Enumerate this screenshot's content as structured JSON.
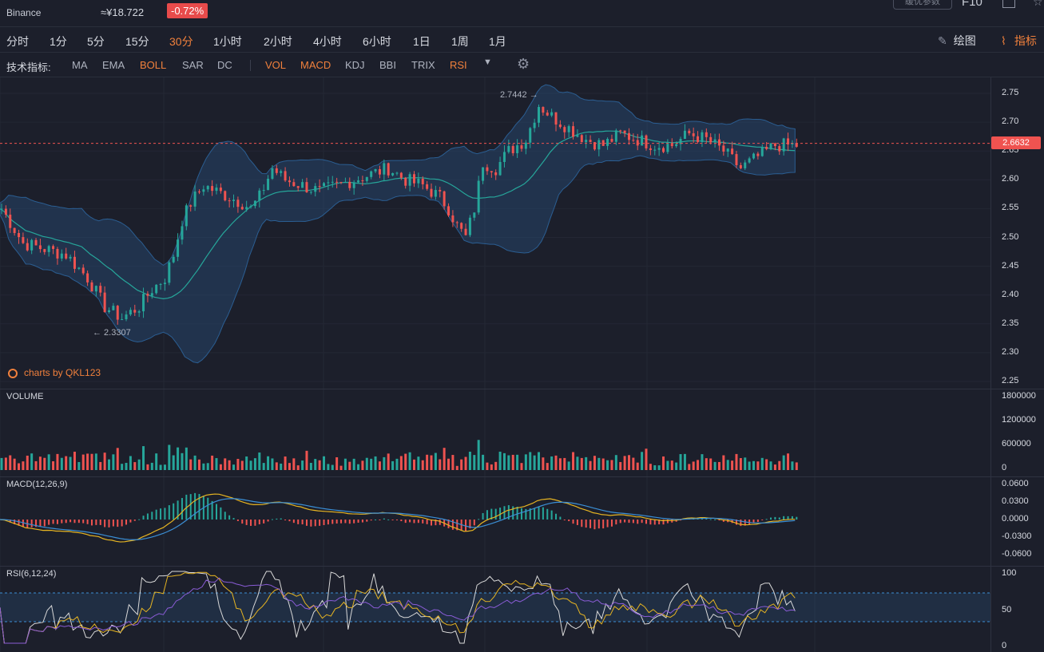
{
  "header": {
    "exchange": "Binance",
    "cny_price": "≈¥18.722",
    "change": "-0.72%",
    "settings_button": "缓优参数",
    "f10": "F10"
  },
  "periods": [
    "分时",
    "1分",
    "5分",
    "15分",
    "30分",
    "1小时",
    "2小时",
    "4小时",
    "6小时",
    "1日",
    "1周",
    "1月"
  ],
  "active_period": "30分",
  "tools": {
    "draw_label": "绘图",
    "indicator_label": "指标"
  },
  "indicator_bar": {
    "label": "技术指标:",
    "main": [
      "MA",
      "EMA",
      "BOLL",
      "SAR",
      "DC"
    ],
    "sub": [
      "VOL",
      "MACD",
      "KDJ",
      "BBI",
      "TRIX",
      "RSI"
    ],
    "active": [
      "BOLL",
      "VOL",
      "MACD",
      "RSI"
    ]
  },
  "main_chart": {
    "price_ticks": [
      "2.75",
      "2.70",
      "2.65",
      "2.60",
      "2.55",
      "2.50",
      "2.45",
      "2.40",
      "2.35",
      "2.30",
      "2.25"
    ],
    "last_price": "2.6632",
    "high_annotation": "2.7442 →",
    "low_annotation": "← 2.3307",
    "brand": "charts by QKL123"
  },
  "volume_panel": {
    "label": "VOLUME",
    "ticks": [
      "1800000",
      "1200000",
      "600000",
      "0"
    ]
  },
  "macd_panel": {
    "label": "MACD(12,26,9)",
    "ticks": [
      "0.0600",
      "0.0300",
      "0.0000",
      "-0.0300",
      "-0.0600"
    ]
  },
  "rsi_panel": {
    "label": "RSI(6,12,24)",
    "ticks": [
      "100",
      "50",
      "0"
    ]
  },
  "colors": {
    "up": "#26a69a",
    "down": "#ef5350",
    "accent": "#f0803c",
    "band": "#2a5a8c",
    "background": "#1c1f2b"
  },
  "chart_data": {
    "type": "candlestick",
    "last_price": 2.6632,
    "high": 2.7442,
    "low": 2.3307,
    "price_range": [
      2.25,
      2.77
    ],
    "close_path": [
      [
        0,
        2.55
      ],
      [
        5,
        2.49
      ],
      [
        10,
        2.48
      ],
      [
        15,
        2.47
      ],
      [
        20,
        2.43
      ],
      [
        24,
        2.38
      ],
      [
        28,
        2.36
      ],
      [
        32,
        2.38
      ],
      [
        35,
        2.41
      ],
      [
        38,
        2.43
      ],
      [
        40,
        2.47
      ],
      [
        42,
        2.53
      ],
      [
        44,
        2.56
      ],
      [
        47,
        2.59
      ],
      [
        50,
        2.58
      ],
      [
        53,
        2.57
      ],
      [
        56,
        2.56
      ],
      [
        58,
        2.55
      ],
      [
        60,
        2.57
      ],
      [
        63,
        2.62
      ],
      [
        66,
        2.6
      ],
      [
        70,
        2.59
      ],
      [
        74,
        2.58
      ],
      [
        78,
        2.59
      ],
      [
        82,
        2.6
      ],
      [
        86,
        2.61
      ],
      [
        90,
        2.62
      ],
      [
        94,
        2.6
      ],
      [
        98,
        2.59
      ],
      [
        102,
        2.57
      ],
      [
        104,
        2.55
      ],
      [
        106,
        2.52
      ],
      [
        108,
        2.5
      ],
      [
        110,
        2.55
      ],
      [
        112,
        2.63
      ],
      [
        115,
        2.62
      ],
      [
        118,
        2.65
      ],
      [
        122,
        2.67
      ],
      [
        125,
        2.73
      ],
      [
        128,
        2.71
      ],
      [
        132,
        2.69
      ],
      [
        136,
        2.67
      ],
      [
        140,
        2.66
      ],
      [
        144,
        2.68
      ],
      [
        148,
        2.67
      ],
      [
        152,
        2.66
      ],
      [
        156,
        2.66
      ],
      [
        160,
        2.68
      ],
      [
        164,
        2.67
      ],
      [
        168,
        2.65
      ],
      [
        172,
        2.62
      ],
      [
        176,
        2.64
      ],
      [
        180,
        2.66
      ],
      [
        184,
        2.66
      ],
      [
        186,
        2.66
      ]
    ],
    "volume_range": [
      0,
      1800000
    ],
    "macd_range": [
      -0.06,
      0.06
    ],
    "rsi_range": [
      0,
      100
    ],
    "rsi_bands": [
      70,
      30
    ]
  }
}
